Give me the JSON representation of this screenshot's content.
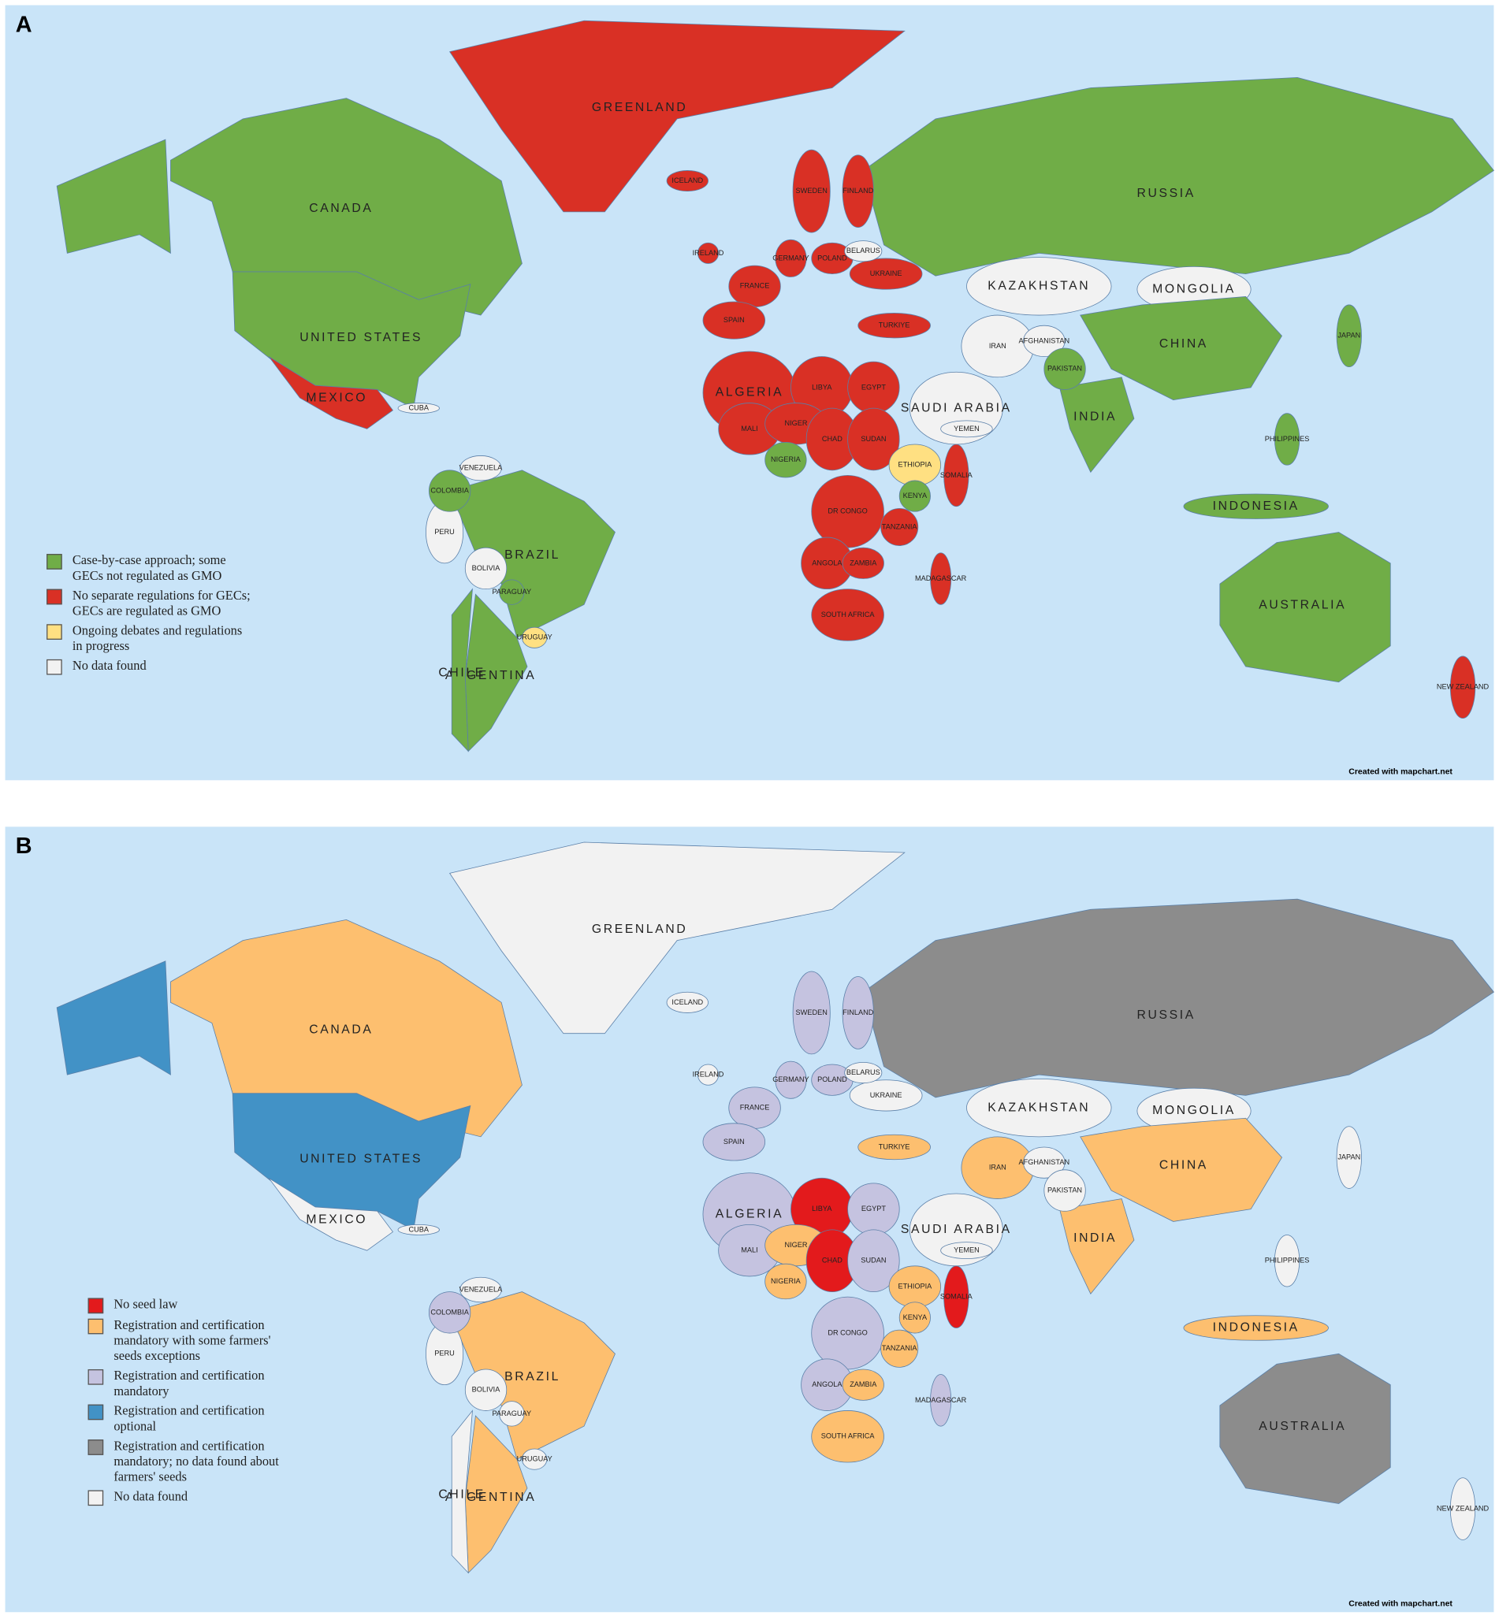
{
  "country_labels": [
    "GREENLAND",
    "CANADA",
    "UNITED STATES",
    "MEXICO",
    "BRAZIL",
    "ARGENTINA",
    "CHILE",
    "PERU",
    "BOLIVIA",
    "COLOMBIA",
    "VENEZUELA",
    "PARAGUAY",
    "URUGUAY",
    "CUBA",
    "RUSSIA",
    "KAZAKHSTAN",
    "MONGOLIA",
    "CHINA",
    "INDIA",
    "IRAN",
    "SAUDI ARABIA",
    "TURKIYE",
    "AFGHANISTAN",
    "PAKISTAN",
    "YEMEN",
    "FRANCE",
    "SPAIN",
    "GERMANY",
    "POLAND",
    "UKRAINE",
    "BELARUS",
    "SWEDEN",
    "FINLAND",
    "IRELAND",
    "ICELAND",
    "ALGERIA",
    "LIBYA",
    "EGYPT",
    "MALI",
    "NIGER",
    "CHAD",
    "SUDAN",
    "NIGERIA",
    "ETHIOPIA",
    "SOMALIA",
    "KENYA",
    "DR CONGO",
    "TANZANIA",
    "ANGOLA",
    "ZAMBIA",
    "SOUTH AFRICA",
    "MADAGASCAR",
    "AUSTRALIA",
    "INDONESIA",
    "PHILIPPINES",
    "JAPAN",
    "NEW ZEALAND"
  ],
  "panels": [
    {
      "letter": "A",
      "credit": "Created with mapchart.net",
      "legend": [
        {
          "label": "Case-by-case approach; some GECs not regulated as GMO",
          "color": "#70ad47"
        },
        {
          "label": "No separate regulations for GECs; GECs are regulated as GMO",
          "color": "#d93025"
        },
        {
          "label": "Ongoing debates and regulations in progress",
          "color": "#ffe082"
        },
        {
          "label": "No data found",
          "color": "#f2f2f2"
        }
      ],
      "category_of_country": [
        1,
        0,
        0,
        1,
        0,
        0,
        0,
        3,
        3,
        0,
        3,
        0,
        2,
        3,
        0,
        3,
        3,
        0,
        0,
        3,
        3,
        1,
        3,
        0,
        3,
        1,
        1,
        1,
        1,
        1,
        3,
        1,
        1,
        1,
        1,
        1,
        1,
        1,
        1,
        1,
        1,
        1,
        0,
        2,
        1,
        0,
        1,
        1,
        1,
        1,
        1,
        1,
        0,
        0,
        0,
        0,
        1
      ]
    },
    {
      "letter": "B",
      "credit": "Created with mapchart.net",
      "legend": [
        {
          "label": "No seed law",
          "color": "#e31a1c"
        },
        {
          "label": "Registration and certification mandatory with some farmers' seeds exceptions",
          "color": "#fdbf6f"
        },
        {
          "label": "Registration and certification mandatory",
          "color": "#c5c3e0"
        },
        {
          "label": "Registration and certification optional",
          "color": "#4292c6"
        },
        {
          "label": "Registration and certification mandatory; no data found about farmers' seeds",
          "color": "#8c8c8c"
        },
        {
          "label": "No data found",
          "color": "#f2f2f2"
        }
      ],
      "category_of_country": [
        5,
        1,
        3,
        5,
        1,
        1,
        5,
        5,
        5,
        2,
        5,
        5,
        5,
        5,
        4,
        5,
        5,
        1,
        1,
        1,
        5,
        1,
        5,
        5,
        5,
        2,
        2,
        2,
        2,
        5,
        5,
        2,
        2,
        5,
        5,
        2,
        0,
        2,
        2,
        1,
        0,
        2,
        1,
        1,
        0,
        1,
        2,
        1,
        2,
        1,
        1,
        2,
        4,
        1,
        5,
        5,
        5
      ]
    }
  ]
}
